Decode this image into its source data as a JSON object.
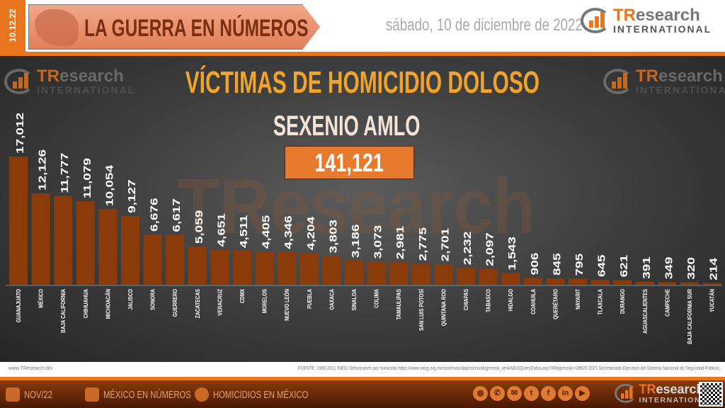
{
  "header": {
    "date_strip": "10.12.22",
    "banner_title": "LA GUERRA EN NÚMEROS",
    "date": "sábado, 10 de diciembre de 2022",
    "logo": {
      "brand_a": "TR",
      "brand_b": "esearch",
      "sub": "INTERNATIONAL"
    }
  },
  "main": {
    "title": "VÍCTIMAS DE HOMICIDIO DOLOSO",
    "subtitle": "SEXENIO AMLO",
    "total": "141,121",
    "watermark": "TResearch"
  },
  "colors": {
    "bar": "#8b3a0a",
    "accent": "#e8761e",
    "title": "#f0a42a"
  },
  "chart_data": {
    "type": "bar",
    "title": "VÍCTIMAS DE HOMICIDIO DOLOSO",
    "categories": [
      "GUANAJUATO",
      "MÉXICO",
      "BAJA CALIFORNIA",
      "CHIHUAHUA",
      "MICHOACÁN",
      "JALISCO",
      "SONORA",
      "GUERRERO",
      "ZACATECAS",
      "VERACRUZ",
      "CDMX",
      "MORELOS",
      "NUEVO LEÓN",
      "PUEBLA",
      "OAXACA",
      "SINALOA",
      "COLIMA",
      "TAMAULIPAS",
      "SAN LUIS POTOSÍ",
      "QUINTANA ROO",
      "CHIAPAS",
      "TABASCO",
      "HIDALGO",
      "COAHUILA",
      "QUERÉTARO",
      "NAYARIT",
      "TLAXCALA",
      "DURANGO",
      "AGUASCALIENTES",
      "CAMPECHE",
      "BAJA CALIFORNIA SUR",
      "YUCATÁN"
    ],
    "values": [
      17012,
      12126,
      11777,
      11079,
      10054,
      9127,
      6676,
      6617,
      5059,
      4651,
      4511,
      4405,
      4346,
      4204,
      3803,
      3186,
      3073,
      2981,
      2775,
      2701,
      2232,
      2097,
      1543,
      906,
      845,
      795,
      645,
      621,
      391,
      349,
      320,
      214
    ],
    "labels": [
      "17,012",
      "12,126",
      "11,777",
      "11,079",
      "10,054",
      "9,127",
      "6,676",
      "6,617",
      "5,059",
      "4,651",
      "4,511",
      "4,405",
      "4,346",
      "4,204",
      "3,803",
      "3,186",
      "3,073",
      "2,981",
      "2,775",
      "2,701",
      "2,232",
      "2,097",
      "1,543",
      "906",
      "845",
      "795",
      "645",
      "621",
      "391",
      "349",
      "320",
      "214"
    ],
    "grid": false,
    "legend": "none"
  },
  "footer": {
    "website": "www.TResearch.Mx",
    "source": "FUENTE: 1990-2021 INEGI Defunciones por homicidio https://www.inegi.org.mx/sistemas/olap/consulta/general_ver4/MDXQueryDatos.asp?#Regreso&c=28820   2021 Secretariado Ejecutivo del Sistema Nacional de Seguridad Pública |",
    "items": [
      "NOV/22",
      "MÉXICO EN NÚMEROS",
      "HOMICIDIOS EN MÉXICO"
    ],
    "social": [
      "globe-icon",
      "whatsapp-icon",
      "email-icon",
      "twitter-icon",
      "facebook-icon",
      "linkedin-icon",
      "youtube-icon"
    ]
  }
}
